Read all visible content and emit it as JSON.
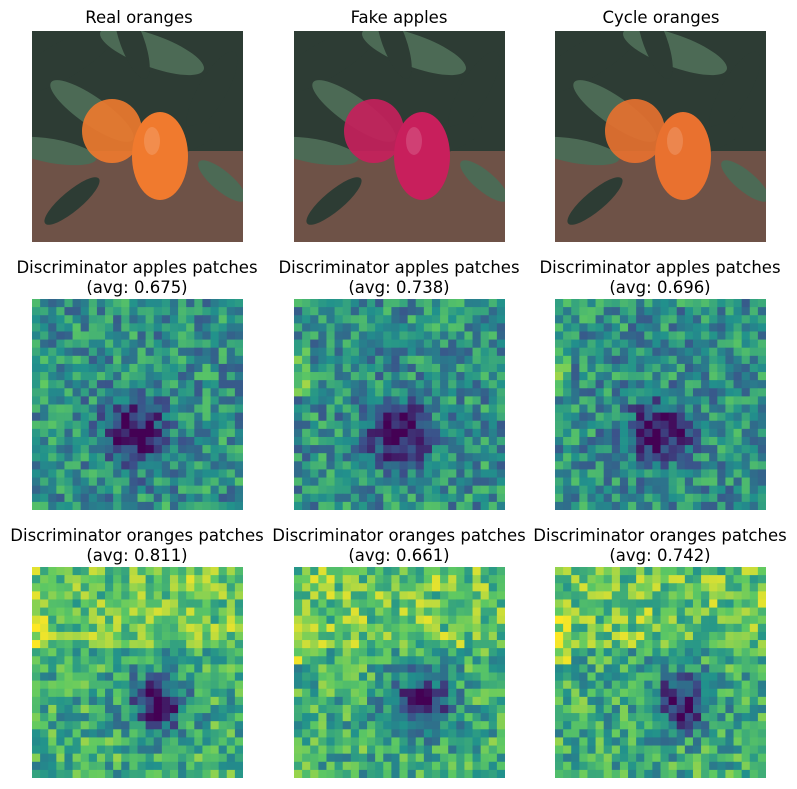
{
  "figure": {
    "rows": [
      {
        "panels": [
          {
            "title": "Real oranges",
            "kind": "photo",
            "fruit_color": "#f07a2e"
          },
          {
            "title": "Fake apples",
            "kind": "photo",
            "fruit_color": "#c81f5c"
          },
          {
            "title": "Cycle oranges",
            "kind": "photo",
            "fruit_color": "#e9712f"
          }
        ]
      },
      {
        "panels": [
          {
            "title": "Discriminator apples patches",
            "subtitle": "(avg: 0.675)",
            "kind": "heatmap",
            "seed": 11
          },
          {
            "title": "Discriminator apples patches",
            "subtitle": "(avg: 0.738)",
            "kind": "heatmap",
            "seed": 23
          },
          {
            "title": "Discriminator apples patches",
            "subtitle": "(avg: 0.696)",
            "kind": "heatmap",
            "seed": 37
          }
        ]
      },
      {
        "panels": [
          {
            "title": "Discriminator oranges patches",
            "subtitle": "(avg: 0.811)",
            "kind": "heatmap",
            "seed": 41
          },
          {
            "title": "Discriminator oranges patches",
            "subtitle": "(avg: 0.661)",
            "kind": "heatmap",
            "seed": 53
          },
          {
            "title": "Discriminator oranges patches",
            "subtitle": "(avg: 0.742)",
            "kind": "heatmap",
            "seed": 67
          }
        ]
      }
    ]
  },
  "colors": {
    "leaf_dark": "#2d3c34",
    "leaf_mid": "#4c6a55",
    "soil": "#6e5247",
    "viridis_low": "#440154",
    "viridis_mid": "#21918c",
    "viridis_high": "#fde725"
  }
}
